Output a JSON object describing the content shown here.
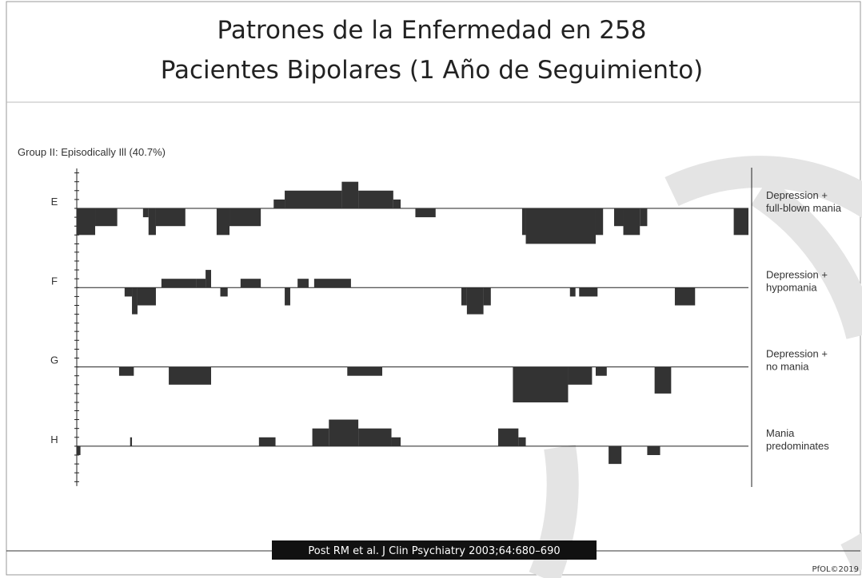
{
  "chart_data": {
    "type": "segments",
    "title": [
      "Patrones de la Enfermedad en 258",
      "Pacientes Bipolares (1 Año de Seguimiento)"
    ],
    "subtitle": "Group II: Episodically Ill (40.7%)",
    "source": "Post RM et al. J Clin Psychiatry 2003;64:680–690",
    "footer": "PfOL©2019",
    "color": "#333333",
    "xlim": [
      0,
      365
    ],
    "ylim": [
      -4.5,
      4.5
    ],
    "rows": [
      {
        "label": "E",
        "name": [
          "Depression +",
          "full-blown mania"
        ],
        "segments": [
          [
            107,
            113,
            1
          ],
          [
            113,
            144,
            2
          ],
          [
            144,
            153,
            3
          ],
          [
            153,
            172,
            2
          ],
          [
            172,
            176,
            1
          ],
          [
            0,
            10,
            -3
          ],
          [
            10,
            22,
            -2
          ],
          [
            36,
            39,
            -1
          ],
          [
            39,
            43,
            -3
          ],
          [
            43,
            59,
            -2
          ],
          [
            76,
            83,
            -3
          ],
          [
            83,
            100,
            -2
          ],
          [
            184,
            195,
            -1
          ],
          [
            242,
            244,
            -3
          ],
          [
            244,
            282,
            -4
          ],
          [
            282,
            286,
            -3
          ],
          [
            292,
            297,
            -2
          ],
          [
            297,
            306,
            -3
          ],
          [
            306,
            310,
            -2
          ],
          [
            357,
            365,
            -3
          ]
        ]
      },
      {
        "label": "F",
        "name": [
          "Depression +",
          "hypomania"
        ],
        "segments": [
          [
            46,
            65,
            1
          ],
          [
            65,
            70,
            1
          ],
          [
            70,
            73,
            2
          ],
          [
            89,
            100,
            1
          ],
          [
            120,
            126,
            1
          ],
          [
            129,
            149,
            1
          ],
          [
            26,
            30,
            -1
          ],
          [
            30,
            33,
            -3
          ],
          [
            33,
            43,
            -2
          ],
          [
            78,
            82,
            -1
          ],
          [
            113,
            116,
            -2
          ],
          [
            209,
            212,
            -2
          ],
          [
            212,
            221,
            -3
          ],
          [
            221,
            225,
            -2
          ],
          [
            268,
            271,
            -1
          ],
          [
            273,
            283,
            -1
          ],
          [
            325,
            336,
            -2
          ]
        ]
      },
      {
        "label": "G",
        "name": [
          "Depression +",
          "no mania"
        ],
        "segments": [
          [
            23,
            31,
            -1
          ],
          [
            50,
            73,
            -2
          ],
          [
            147,
            166,
            -1
          ],
          [
            237,
            267,
            -4
          ],
          [
            267,
            280,
            -2
          ],
          [
            282,
            288,
            -1
          ],
          [
            314,
            323,
            -3
          ]
        ]
      },
      {
        "label": "H",
        "name": [
          "Mania",
          "predominates"
        ],
        "segments": [
          [
            29,
            30,
            1
          ],
          [
            99,
            108,
            1
          ],
          [
            128,
            137,
            2
          ],
          [
            137,
            153,
            3
          ],
          [
            153,
            171,
            2
          ],
          [
            171,
            176,
            1
          ],
          [
            229,
            240,
            2
          ],
          [
            240,
            244,
            1
          ],
          [
            0,
            2,
            -1
          ],
          [
            289,
            296,
            -2
          ],
          [
            310,
            317,
            -1
          ]
        ]
      }
    ]
  }
}
